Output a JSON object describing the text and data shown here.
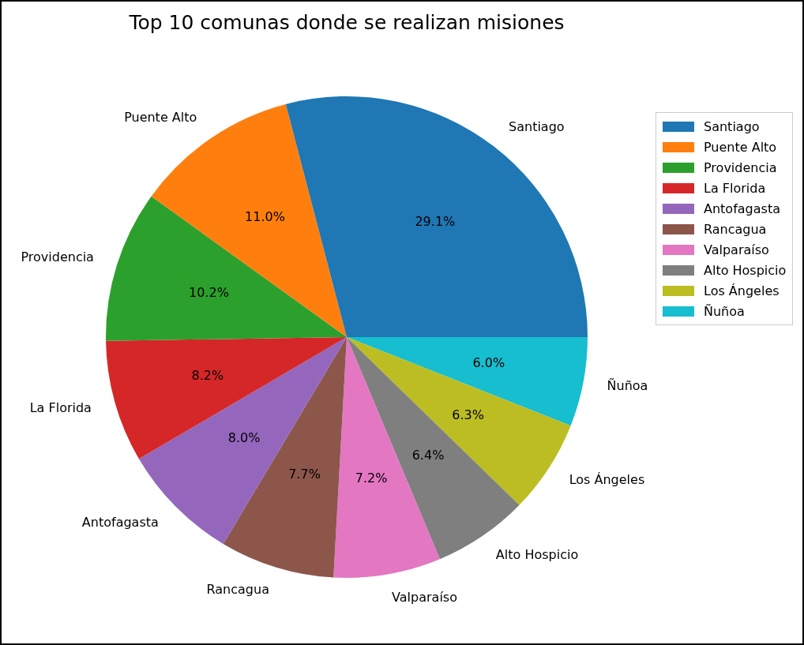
{
  "chart_data": {
    "type": "pie",
    "title": "Top 10 comunas donde se realizan misiones",
    "categories": [
      "Santiago",
      "Puente Alto",
      "Providencia",
      "La Florida",
      "Antofagasta",
      "Rancagua",
      "Valparaíso",
      "Alto Hospicio",
      "Los Ángeles",
      "Ñuñoa"
    ],
    "values": [
      29.1,
      11.0,
      10.2,
      8.2,
      8.0,
      7.7,
      7.2,
      6.4,
      6.3,
      6.0
    ],
    "value_labels": [
      "29.1%",
      "11.0%",
      "10.2%",
      "8.2%",
      "8.0%",
      "7.7%",
      "7.2%",
      "6.4%",
      "6.3%",
      "6.0%"
    ],
    "colors": [
      "#1f77b4",
      "#ff7f0e",
      "#2ca02c",
      "#d62728",
      "#9467bd",
      "#8c564b",
      "#e377c2",
      "#7f7f7f",
      "#bcbd22",
      "#17becf"
    ],
    "legend": "top right"
  }
}
